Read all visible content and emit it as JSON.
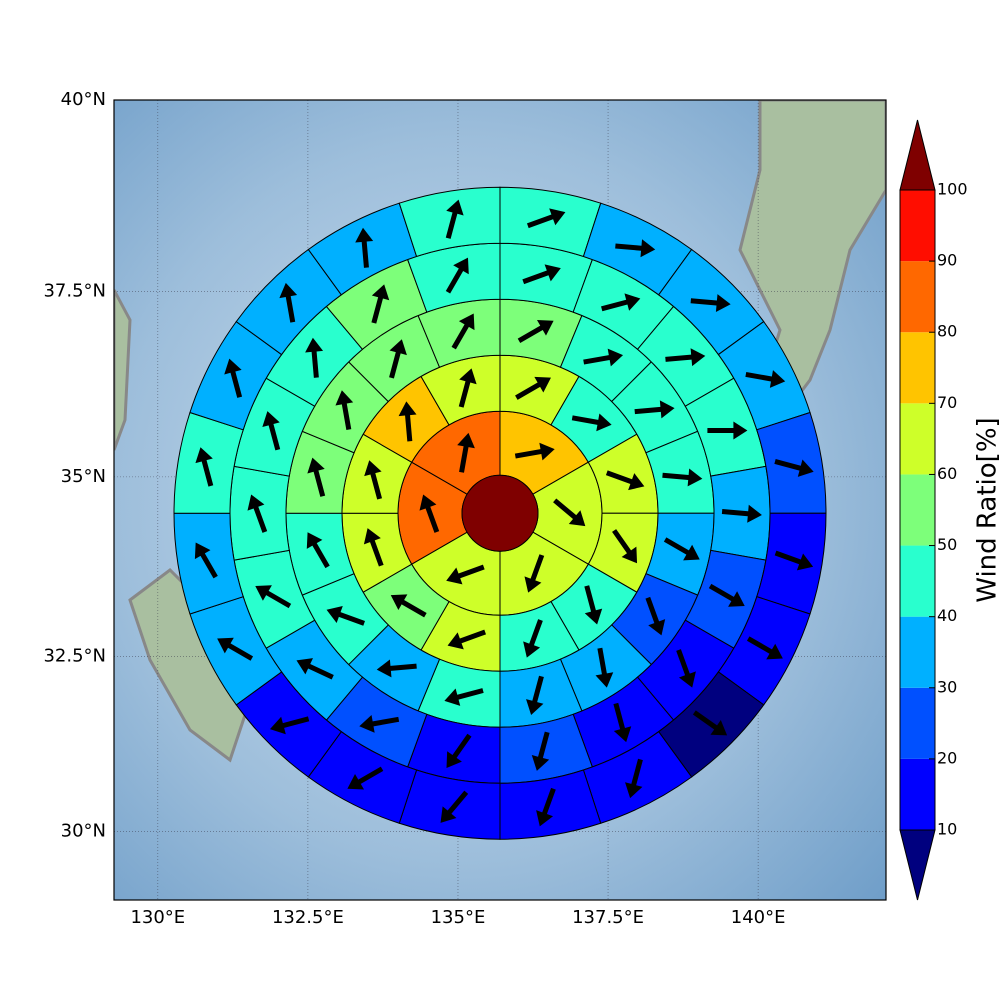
{
  "chart_data": {
    "type": "polar_sectors",
    "projection": "mercator",
    "grid": true,
    "xlim": [
      129.27,
      142.13
    ],
    "ylim": [
      29,
      40
    ],
    "xticks": [
      {
        "value": 130,
        "label": "130°E"
      },
      {
        "value": 132.5,
        "label": "132.5°E"
      },
      {
        "value": 135,
        "label": "135°E"
      },
      {
        "value": 137.5,
        "label": "137.5°E"
      },
      {
        "value": 140,
        "label": "140°E"
      }
    ],
    "yticks": [
      {
        "value": 30,
        "label": "30°N"
      },
      {
        "value": 32.5,
        "label": "32.5°N"
      },
      {
        "value": 35,
        "label": "35°N"
      },
      {
        "value": 37.5,
        "label": "37.5°N"
      },
      {
        "value": 40,
        "label": "40°N"
      }
    ],
    "center": {
      "lon": 135.7,
      "lat": 34.5,
      "value": 105
    },
    "rings": [
      {
        "values": [
          75,
          65,
          65,
          65,
          85,
          85
        ],
        "directions": [
          80,
          130,
          200,
          250,
          340,
          10
        ]
      },
      {
        "values": [
          65,
          45,
          65,
          65,
          45,
          45,
          65,
          55,
          65,
          65,
          75,
          65
        ],
        "directions": [
          60,
          100,
          110,
          145,
          165,
          200,
          250,
          300,
          340,
          345,
          355,
          15
        ]
      },
      {
        "values": [
          55,
          45,
          45,
          45,
          35,
          25,
          35,
          35,
          45,
          35,
          45,
          45,
          55,
          55,
          55,
          55
        ],
        "directions": [
          60,
          80,
          85,
          95,
          120,
          160,
          170,
          195,
          255,
          265,
          290,
          330,
          345,
          350,
          15,
          30
        ]
      },
      {
        "values": [
          45,
          45,
          45,
          45,
          35,
          25,
          15,
          15,
          25,
          15,
          25,
          35,
          45,
          45,
          45,
          45,
          55,
          45
        ],
        "directions": [
          70,
          75,
          85,
          90,
          95,
          120,
          160,
          165,
          195,
          215,
          260,
          295,
          300,
          340,
          345,
          355,
          15,
          30
        ]
      },
      {
        "values": [
          45,
          35,
          35,
          35,
          25,
          15,
          15,
          5,
          15,
          15,
          15,
          15,
          15,
          35,
          35,
          45,
          35,
          35,
          35,
          45
        ],
        "directions": [
          70,
          95,
          95,
          100,
          105,
          110,
          120,
          125,
          195,
          200,
          220,
          240,
          255,
          300,
          330,
          345,
          345,
          350,
          355,
          15
        ]
      }
    ],
    "colorbar": {
      "label": "Wind Ratio[%]",
      "ticks": [
        10,
        20,
        30,
        40,
        50,
        60,
        70,
        80,
        90,
        100
      ],
      "colors": [
        "#00007f",
        "#0000ff",
        "#0050ff",
        "#00b0ff",
        "#29ffce",
        "#7dff7a",
        "#ceff29",
        "#ffc400",
        "#ff6800",
        "#ff0d00",
        "#7f0000"
      ]
    }
  }
}
